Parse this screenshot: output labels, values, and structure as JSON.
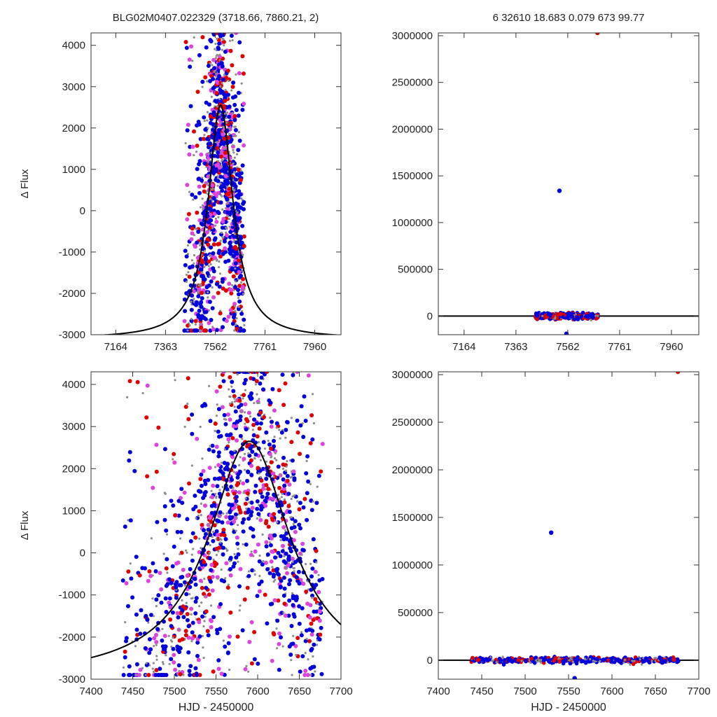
{
  "header": {
    "left_title": "BLG02M0407.022329 (3718.66, 7860.21,    2)",
    "right_title": "6   32610    18.683    0.079    673    99.77"
  },
  "colors": {
    "gray": "#8c8c8c",
    "red": "#e00000",
    "blue": "#0000dd",
    "magenta": "#dd44dd",
    "model": "#000000"
  },
  "chart_data": [
    {
      "id": "top-left",
      "type": "scatter",
      "xlabel": "",
      "ylabel": "Δ Flux",
      "xlim": [
        7065,
        8065
      ],
      "ylim": [
        -3000,
        4300
      ],
      "xticks": [
        7164,
        7363,
        7562,
        7761,
        7960
      ],
      "yticks": [
        -3000,
        -2000,
        -1000,
        0,
        1000,
        2000,
        3000,
        4000
      ],
      "model": {
        "t0": 7583,
        "amplitude": 5650,
        "baseline": -3100,
        "width": 60
      },
      "cluster": {
        "x_range": [
          7438,
          7678
        ],
        "center": 7583,
        "sigma": 55,
        "y_low": -2900,
        "y_high": 4300
      }
    },
    {
      "id": "top-right",
      "type": "scatter",
      "xlabel": "",
      "ylabel": "",
      "xlim": [
        7065,
        8065
      ],
      "ylim": [
        -200000,
        3030000
      ],
      "xticks": [
        7164,
        7363,
        7562,
        7761,
        7960
      ],
      "yticks": [
        0,
        500000,
        1000000,
        1500000,
        2000000,
        2500000,
        3000000
      ],
      "outliers": [
        {
          "x": 7676,
          "y": 3030000,
          "color": "red"
        },
        {
          "x": 7530,
          "y": 1340000,
          "color": "blue"
        },
        {
          "x": 7557,
          "y": -190000,
          "color": "blue"
        },
        {
          "x": 7535,
          "y": 20000,
          "color": "red"
        }
      ],
      "cluster": {
        "x_range": [
          7438,
          7678
        ],
        "y_spread": 15000
      }
    },
    {
      "id": "bottom-left",
      "type": "scatter",
      "xlabel": "HJD - 2450000",
      "ylabel": "Δ Flux",
      "xlim": [
        7400,
        7700
      ],
      "ylim": [
        -3000,
        4300
      ],
      "xticks": [
        7400,
        7450,
        7500,
        7550,
        7600,
        7650,
        7700
      ],
      "yticks": [
        -3000,
        -2000,
        -1000,
        0,
        1000,
        2000,
        3000,
        4000
      ],
      "model": {
        "t0": 7590,
        "amplitude": 5650,
        "baseline": -3000,
        "width": 60
      },
      "cluster": {
        "x_range": [
          7438,
          7678
        ],
        "center": 7585,
        "sigma": 55,
        "y_low": -2900,
        "y_high": 4300
      }
    },
    {
      "id": "bottom-right",
      "type": "scatter",
      "xlabel": "HJD - 2450000",
      "ylabel": "",
      "xlim": [
        7400,
        7700
      ],
      "ylim": [
        -200000,
        3030000
      ],
      "xticks": [
        7400,
        7450,
        7500,
        7550,
        7600,
        7650,
        7700
      ],
      "yticks": [
        0,
        500000,
        1000000,
        1500000,
        2000000,
        2500000,
        3000000
      ],
      "outliers": [
        {
          "x": 7676,
          "y": 3030000,
          "color": "red"
        },
        {
          "x": 7530,
          "y": 1340000,
          "color": "blue"
        },
        {
          "x": 7557,
          "y": -190000,
          "color": "blue"
        },
        {
          "x": 7535,
          "y": 20000,
          "color": "red"
        }
      ],
      "cluster": {
        "x_range": [
          7438,
          7678
        ],
        "y_spread": 15000
      }
    }
  ]
}
